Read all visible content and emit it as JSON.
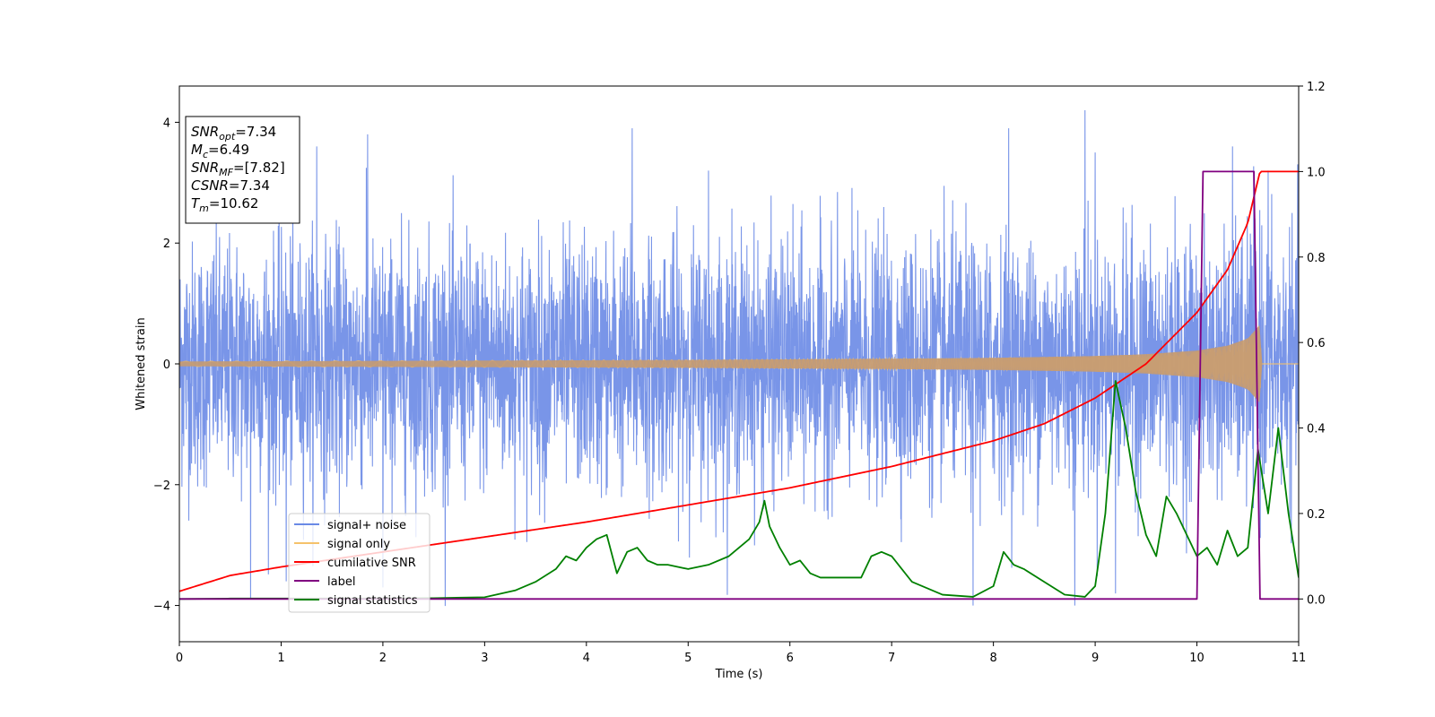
{
  "chart_data": {
    "type": "line",
    "xlabel": "Time (s)",
    "ylabel": "Whitened strain",
    "xlim": [
      0,
      11
    ],
    "ylim": [
      -4.6,
      4.6
    ],
    "y2lim": [
      -0.1,
      1.2
    ],
    "x_ticks": [
      0,
      1,
      2,
      3,
      4,
      5,
      6,
      7,
      8,
      9,
      10,
      11
    ],
    "y_ticks": [
      -4,
      -2,
      0,
      2,
      4
    ],
    "y_tick_labels": [
      "−4",
      "−2",
      "0",
      "2",
      "4"
    ],
    "y2_ticks": [
      0.0,
      0.2,
      0.4,
      0.6,
      0.8,
      1.0,
      1.2
    ],
    "y2_tick_labels": [
      "0.0",
      "0.2",
      "0.4",
      "0.6",
      "0.8",
      "1.0",
      "1.2"
    ],
    "legend": {
      "placement": "lower-left",
      "entries": [
        "signal+ noise",
        "signal only",
        "cumilative SNR",
        "label",
        "signal statistics"
      ]
    },
    "annotation": {
      "lines": [
        {
          "var": "SNR",
          "sub": "opt",
          "rest": "=7.34"
        },
        {
          "var": "M",
          "sub": "c",
          "rest": "=6.49"
        },
        {
          "var": "SNR",
          "sub": "MF",
          "rest": "=[7.82]"
        },
        {
          "var": "CSNR",
          "sub": "",
          "rest": "=7.34"
        },
        {
          "var": "T",
          "sub": "m",
          "rest": "=10.62"
        }
      ]
    },
    "series": [
      {
        "key": "noise",
        "axis": "left",
        "color": "#6a8ae6",
        "noise_std": 1.0,
        "sample_rate": 400,
        "spikes": [
          [
            0.7,
            -3.9
          ],
          [
            1.05,
            -3.6
          ],
          [
            1.35,
            3.6
          ],
          [
            1.85,
            3.8
          ],
          [
            2.0,
            -3.7
          ],
          [
            4.45,
            3.9
          ],
          [
            5.2,
            3.2
          ],
          [
            7.8,
            -4.0
          ],
          [
            8.15,
            3.9
          ],
          [
            8.8,
            -4.0
          ],
          [
            8.9,
            4.2
          ],
          [
            9.0,
            3.5
          ],
          [
            9.2,
            -3.8
          ],
          [
            10.35,
            3.6
          ],
          [
            10.7,
            3.2
          ]
        ]
      },
      {
        "key": "signal",
        "axis": "left",
        "color": "#f5c26b",
        "x": [
          0,
          1,
          2,
          3,
          4,
          5,
          6,
          7,
          8,
          9,
          9.5,
          10,
          10.3,
          10.5,
          10.62,
          10.63,
          11
        ],
        "amplitude": [
          0.04,
          0.045,
          0.05,
          0.055,
          0.06,
          0.065,
          0.075,
          0.085,
          0.1,
          0.13,
          0.16,
          0.22,
          0.3,
          0.42,
          0.65,
          0,
          0
        ]
      },
      {
        "key": "csnr",
        "axis": "right",
        "color": "#ff0000",
        "x": [
          0,
          0.5,
          1,
          2,
          3,
          4,
          5,
          6,
          7,
          8,
          8.5,
          9,
          9.5,
          10,
          10.3,
          10.5,
          10.62,
          11
        ],
        "y": [
          0.018,
          0.055,
          0.075,
          0.11,
          0.145,
          0.18,
          0.22,
          0.26,
          0.31,
          0.37,
          0.41,
          0.47,
          0.55,
          0.67,
          0.77,
          0.88,
          1.0,
          1.0
        ]
      },
      {
        "key": "label",
        "axis": "right",
        "color": "#800080",
        "x": [
          0,
          10.0,
          10.06,
          10.56,
          10.62,
          11
        ],
        "y": [
          0,
          0,
          1,
          1,
          0,
          0
        ]
      },
      {
        "key": "stats",
        "axis": "right",
        "color": "#008000",
        "x": [
          0,
          0.5,
          1,
          1.5,
          2,
          2.5,
          3,
          3.3,
          3.5,
          3.7,
          3.8,
          3.9,
          4.0,
          4.1,
          4.2,
          4.3,
          4.4,
          4.5,
          4.6,
          4.7,
          4.8,
          5.0,
          5.2,
          5.4,
          5.5,
          5.6,
          5.7,
          5.75,
          5.8,
          5.9,
          6.0,
          6.1,
          6.2,
          6.3,
          6.5,
          6.7,
          6.8,
          6.9,
          7.0,
          7.2,
          7.5,
          7.8,
          8.0,
          8.1,
          8.2,
          8.3,
          8.5,
          8.7,
          8.9,
          9.0,
          9.1,
          9.2,
          9.3,
          9.4,
          9.5,
          9.6,
          9.7,
          9.8,
          9.9,
          10.0,
          10.1,
          10.2,
          10.3,
          10.4,
          10.5,
          10.6,
          10.7,
          10.8,
          10.9,
          11.0
        ],
        "y": [
          0.0,
          0.001,
          0.001,
          0.001,
          0.001,
          0.002,
          0.004,
          0.02,
          0.04,
          0.07,
          0.1,
          0.09,
          0.12,
          0.14,
          0.15,
          0.06,
          0.11,
          0.12,
          0.09,
          0.08,
          0.08,
          0.07,
          0.08,
          0.1,
          0.12,
          0.14,
          0.18,
          0.23,
          0.17,
          0.12,
          0.08,
          0.09,
          0.06,
          0.05,
          0.05,
          0.05,
          0.1,
          0.11,
          0.1,
          0.04,
          0.01,
          0.005,
          0.03,
          0.11,
          0.08,
          0.07,
          0.04,
          0.01,
          0.005,
          0.03,
          0.2,
          0.51,
          0.4,
          0.25,
          0.15,
          0.1,
          0.24,
          0.2,
          0.15,
          0.1,
          0.12,
          0.08,
          0.16,
          0.1,
          0.12,
          0.35,
          0.2,
          0.4,
          0.2,
          0.05
        ]
      }
    ]
  }
}
